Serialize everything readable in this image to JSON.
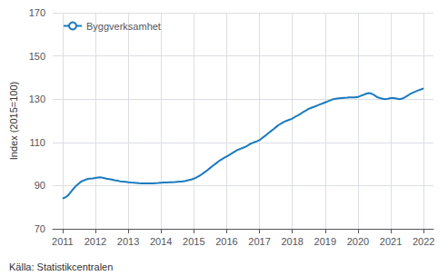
{
  "chart_data": {
    "type": "line",
    "ylabel": "Index (2015=100)",
    "annotation": "Källa: Statistikcentralen",
    "x": [
      2011.0,
      2011.08,
      2011.17,
      2011.25,
      2011.33,
      2011.42,
      2011.5,
      2011.58,
      2011.67,
      2011.75,
      2011.83,
      2011.92,
      2012.0,
      2012.08,
      2012.17,
      2012.25,
      2012.33,
      2012.42,
      2012.5,
      2012.58,
      2012.67,
      2012.75,
      2012.83,
      2012.92,
      2013.0,
      2013.08,
      2013.17,
      2013.25,
      2013.33,
      2013.42,
      2013.5,
      2013.58,
      2013.67,
      2013.75,
      2013.83,
      2013.92,
      2014.0,
      2014.08,
      2014.17,
      2014.25,
      2014.33,
      2014.42,
      2014.5,
      2014.58,
      2014.67,
      2014.75,
      2014.83,
      2014.92,
      2015.0,
      2015.08,
      2015.17,
      2015.25,
      2015.33,
      2015.42,
      2015.5,
      2015.58,
      2015.67,
      2015.75,
      2015.83,
      2015.92,
      2016.0,
      2016.08,
      2016.17,
      2016.25,
      2016.33,
      2016.42,
      2016.5,
      2016.58,
      2016.67,
      2016.75,
      2016.83,
      2016.92,
      2017.0,
      2017.08,
      2017.17,
      2017.25,
      2017.33,
      2017.42,
      2017.5,
      2017.58,
      2017.67,
      2017.75,
      2017.83,
      2017.92,
      2018.0,
      2018.08,
      2018.17,
      2018.25,
      2018.33,
      2018.42,
      2018.5,
      2018.58,
      2018.67,
      2018.75,
      2018.83,
      2018.92,
      2019.0,
      2019.08,
      2019.17,
      2019.25,
      2019.33,
      2019.42,
      2019.5,
      2019.58,
      2019.67,
      2019.75,
      2019.83,
      2019.92,
      2020.0,
      2020.08,
      2020.17,
      2020.25,
      2020.33,
      2020.42,
      2020.5,
      2020.58,
      2020.67,
      2020.75,
      2020.83,
      2020.92,
      2021.0,
      2021.08,
      2021.17,
      2021.25,
      2021.33,
      2021.42,
      2021.5,
      2021.58,
      2021.67,
      2021.75,
      2021.83,
      2021.92,
      2022.0
    ],
    "series": [
      {
        "name": "Byggverksamhet",
        "color": "#1a7abf",
        "values": [
          84.0,
          84.5,
          85.5,
          87.0,
          88.5,
          90.0,
          91.0,
          92.0,
          92.5,
          93.0,
          93.2,
          93.3,
          93.5,
          93.7,
          93.8,
          93.5,
          93.2,
          93.0,
          92.8,
          92.5,
          92.3,
          92.0,
          91.8,
          91.7,
          91.5,
          91.4,
          91.3,
          91.2,
          91.1,
          91.0,
          91.0,
          91.0,
          91.0,
          91.0,
          91.1,
          91.2,
          91.3,
          91.4,
          91.4,
          91.5,
          91.5,
          91.6,
          91.7,
          91.8,
          92.0,
          92.2,
          92.5,
          92.8,
          93.2,
          93.8,
          94.5,
          95.3,
          96.2,
          97.2,
          98.2,
          99.2,
          100.2,
          101.2,
          102.0,
          102.8,
          103.5,
          104.2,
          105.0,
          105.8,
          106.5,
          107.0,
          107.5,
          108.0,
          108.8,
          109.5,
          110.0,
          110.5,
          111.0,
          112.0,
          113.0,
          114.0,
          115.0,
          116.0,
          117.0,
          118.0,
          118.8,
          119.5,
          120.0,
          120.5,
          121.0,
          121.8,
          122.5,
          123.2,
          124.0,
          124.8,
          125.5,
          126.0,
          126.5,
          127.0,
          127.5,
          128.0,
          128.5,
          129.0,
          129.5,
          130.0,
          130.2,
          130.4,
          130.5,
          130.6,
          130.7,
          130.8,
          130.8,
          130.8,
          131.0,
          131.5,
          132.0,
          132.5,
          132.8,
          132.5,
          131.8,
          131.0,
          130.5,
          130.2,
          130.0,
          130.2,
          130.5,
          130.5,
          130.3,
          130.0,
          130.2,
          130.8,
          131.5,
          132.3,
          133.0,
          133.5,
          134.0,
          134.5,
          135.0
        ]
      }
    ],
    "xlim": [
      2010.7,
      2022.3
    ],
    "xticks": [
      2011,
      2012,
      2013,
      2014,
      2015,
      2016,
      2017,
      2018,
      2019,
      2020,
      2021,
      2022
    ],
    "ylim": [
      70,
      170
    ],
    "yticks": [
      70,
      90,
      110,
      130,
      150,
      170
    ],
    "grid": true,
    "legend": "upper left"
  }
}
